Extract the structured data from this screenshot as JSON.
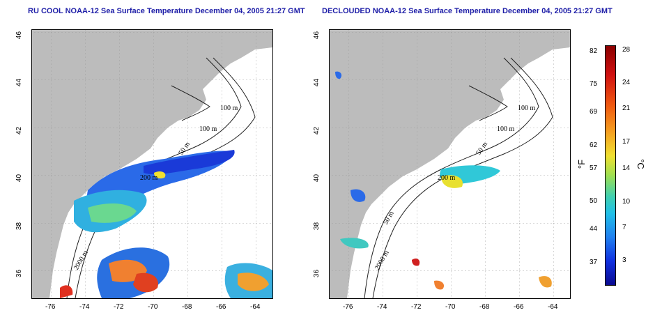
{
  "titles": {
    "left": "RU COOL NOAA-12 Sea Surface Temperature December 04, 2005 21:27 GMT",
    "right": "DECLOUDED NOAA-12 Sea Surface Temperature December 04, 2005 21:27 GMT"
  },
  "axes": {
    "lon_ticks": [
      "-76",
      "-74",
      "-72",
      "-70",
      "-68",
      "-66",
      "-64"
    ],
    "lat_ticks": [
      "46",
      "44",
      "42",
      "40",
      "38",
      "36"
    ]
  },
  "contour_labels": {
    "m100a": "100 m",
    "m100b": "100 m",
    "m50": "50 m",
    "m200": "200 m",
    "m2000": "2000 m",
    "m50_right": "50 m"
  },
  "colorbar": {
    "fahrenheit_ticks": [
      "82",
      "75",
      "69",
      "62",
      "57",
      "50",
      "44",
      "37"
    ],
    "celsius_ticks": [
      "28",
      "24",
      "21",
      "17",
      "14",
      "10",
      "7",
      "3"
    ],
    "unit_f": "°F",
    "unit_c": "°C"
  },
  "colors": {
    "land": "#bcbcbc",
    "title": "#1f1fa8"
  }
}
